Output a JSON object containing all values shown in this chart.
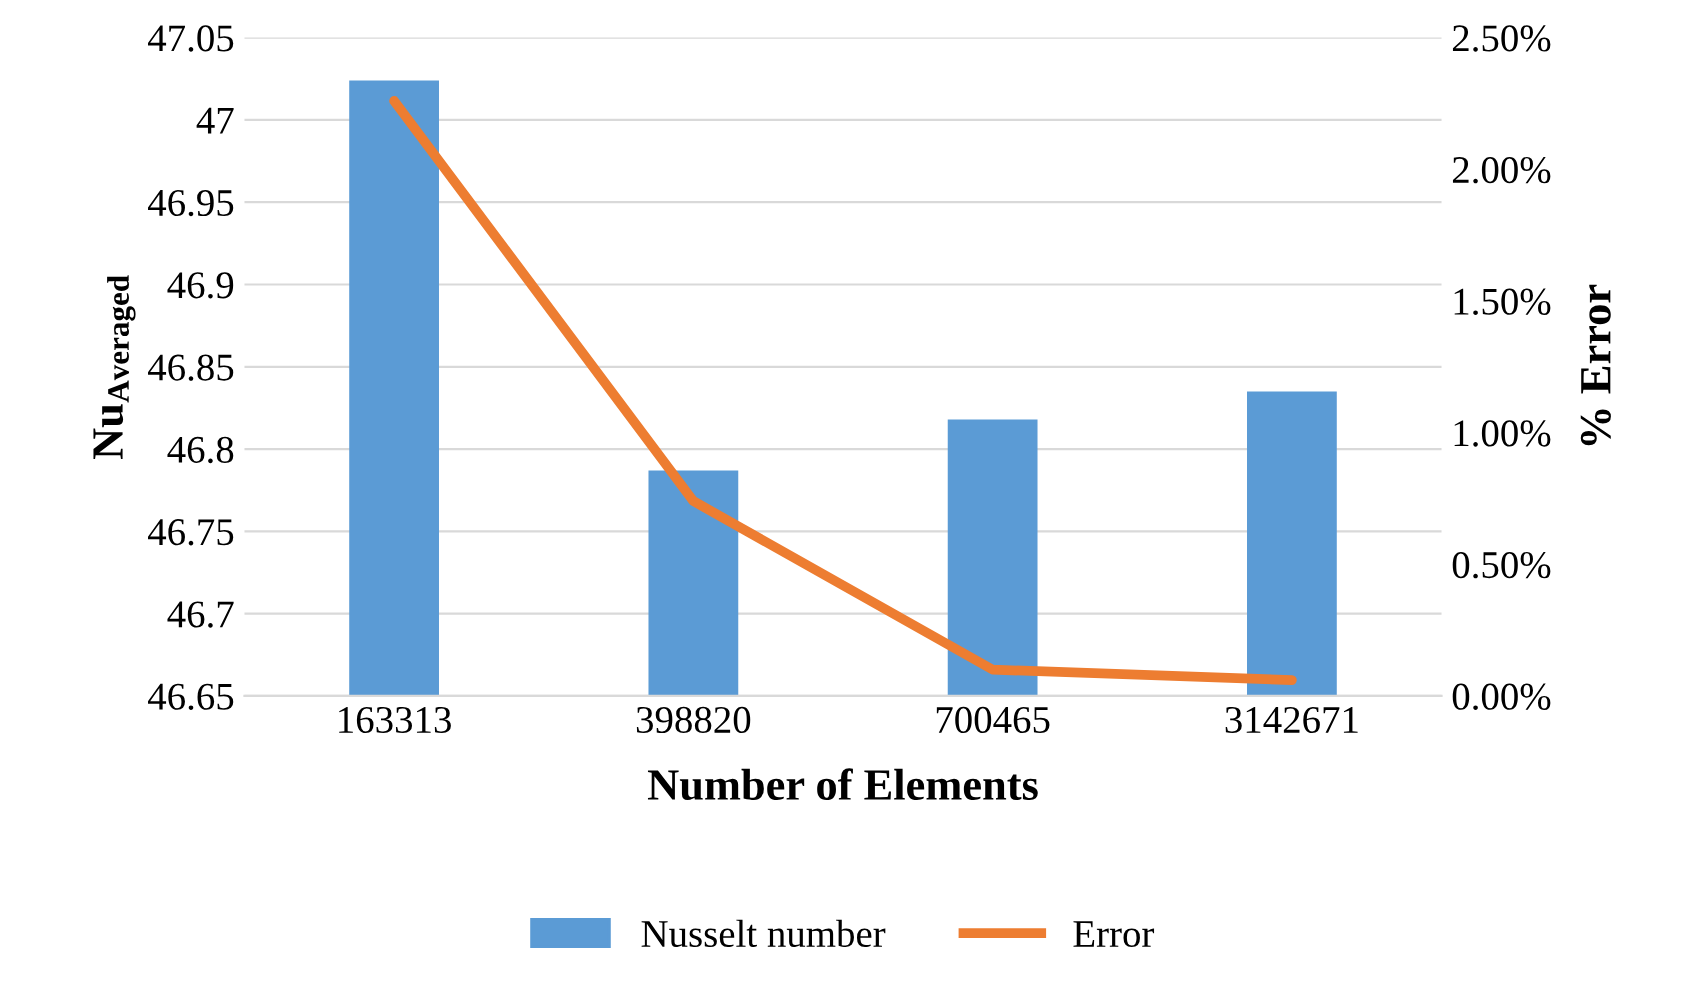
{
  "chart_data": {
    "type": "bar",
    "xlabel": "Number of Elements",
    "ylabel": "Nu$_{Averaged}$",
    "y2label": "% Error",
    "categories": [
      "163313",
      "398820",
      "700465",
      "3142671"
    ],
    "series": [
      {
        "name": "Nusselt number",
        "color": "#5b9bd5",
        "values": [
          47.024,
          46.787,
          46.818,
          46.835
        ]
      },
      {
        "name": "Error",
        "type": "line",
        "axis": "y2",
        "color": "#ed7d31",
        "values": [
          2.26,
          0.74,
          0.1,
          0.06
        ]
      }
    ],
    "ylim": [
      46.65,
      47.05
    ],
    "yticks": [
      46.65,
      46.7,
      46.75,
      46.8,
      46.85,
      46.9,
      46.95,
      47,
      47.05
    ],
    "y2lim": [
      0,
      2.5
    ],
    "y2ticks": [
      {
        "value": 0,
        "label": "0.00%"
      },
      {
        "value": 0.5,
        "label": "0.50%"
      },
      {
        "value": 1,
        "label": "1.00%"
      },
      {
        "value": 1.5,
        "label": "1.50%"
      },
      {
        "value": 2,
        "label": "2.00%"
      },
      {
        "value": 2.5,
        "label": "2.50%"
      }
    ],
    "grid": "y",
    "legend": "bottom",
    "marker": "none",
    "line_style": "solid"
  }
}
